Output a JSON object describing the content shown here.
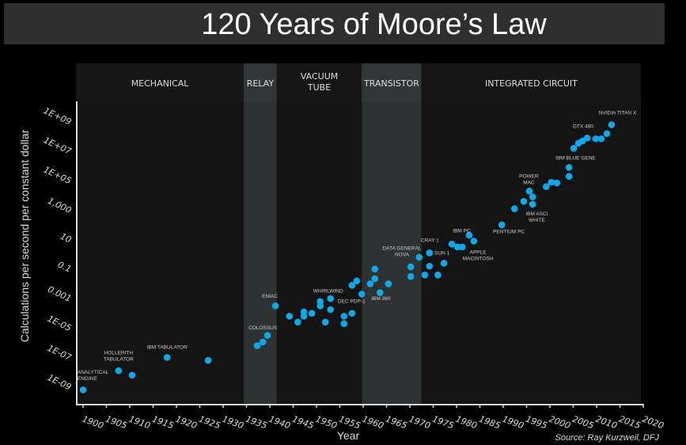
{
  "title": "120 Years of Moore’s Law",
  "chart_data": {
    "type": "scatter",
    "title": "120 Years of Moore’s Law",
    "xlabel": "Year",
    "ylabel": "Calculations per second per constant dollar",
    "yscale": "log10",
    "xlim": [
      1898.5,
      2020
    ],
    "ylim_log10": [
      -9.7,
      10.1
    ],
    "x_ticks": [
      1900,
      1905,
      1910,
      1915,
      1920,
      1925,
      1930,
      1935,
      1940,
      1945,
      1950,
      1955,
      1960,
      1965,
      1970,
      1975,
      1980,
      1985,
      1990,
      1995,
      2000,
      2005,
      2010,
      2015,
      2020
    ],
    "y_ticks": [
      {
        "log": 9,
        "label": "1E+09"
      },
      {
        "log": 7,
        "label": "1E+07"
      },
      {
        "log": 5,
        "label": "1E+05"
      },
      {
        "log": 3,
        "label": "1,000"
      },
      {
        "log": 1,
        "label": "10"
      },
      {
        "log": -1,
        "label": "0.1"
      },
      {
        "log": -3,
        "label": "0.001"
      },
      {
        "log": -5,
        "label": "1E-05"
      },
      {
        "log": -7,
        "label": "1E-07"
      },
      {
        "log": -9,
        "label": "1E-09"
      }
    ],
    "eras": [
      {
        "name": "MECHANICAL",
        "start": 1898.5,
        "end": 1934.4,
        "highlight": false
      },
      {
        "name": "RELAY",
        "start": 1934.4,
        "end": 1941.5,
        "highlight": true
      },
      {
        "name": "VACUUM TUBE",
        "start": 1941.5,
        "end": 1959.7,
        "highlight": false
      },
      {
        "name": "TRANSISTOR",
        "start": 1959.7,
        "end": 1972.5,
        "highlight": true
      },
      {
        "name": "INTEGRATED CIRCUIT",
        "start": 1972.5,
        "end": 2019.5,
        "highlight": false
      }
    ],
    "point_color": "#0fa8e8",
    "points_log10": [
      [
        1900,
        -9.3
      ],
      [
        1907.6,
        -8.0
      ],
      [
        1910.5,
        -8.3
      ],
      [
        1918,
        -7.1
      ],
      [
        1926.8,
        -7.3
      ],
      [
        1937.3,
        -6.3
      ],
      [
        1938.5,
        -6.05
      ],
      [
        1939.5,
        -5.6
      ],
      [
        1941.2,
        -3.6
      ],
      [
        1944.2,
        -4.3
      ],
      [
        1946,
        -4.7
      ],
      [
        1947.3,
        -4.0
      ],
      [
        1947.3,
        -4.3
      ],
      [
        1949,
        -4.1
      ],
      [
        1950.8,
        -3.3
      ],
      [
        1950.8,
        -3.6
      ],
      [
        1951.9,
        -4.7
      ],
      [
        1953,
        -3.1
      ],
      [
        1953,
        -3.85
      ],
      [
        1955.9,
        -4.3
      ],
      [
        1955.9,
        -4.8
      ],
      [
        1957.6,
        -4.1
      ],
      [
        1957.6,
        -2.2
      ],
      [
        1958.6,
        -1.9
      ],
      [
        1959.7,
        -2.8
      ],
      [
        1961.5,
        -2.1
      ],
      [
        1962.5,
        -1.1
      ],
      [
        1962.5,
        -1.75
      ],
      [
        1963.6,
        -2.7
      ],
      [
        1965.4,
        -2.1
      ],
      [
        1970.2,
        -0.95
      ],
      [
        1970.2,
        -1.6
      ],
      [
        1972,
        -0.3
      ],
      [
        1973.2,
        -1.5
      ],
      [
        1974.2,
        0.0
      ],
      [
        1974.2,
        -0.9
      ],
      [
        1976,
        -1.5
      ],
      [
        1977.3,
        -0.7
      ],
      [
        1979,
        0.6
      ],
      [
        1980.2,
        0.4
      ],
      [
        1981.2,
        0.4
      ],
      [
        1982.7,
        1.2
      ],
      [
        1983.7,
        0.8
      ],
      [
        1989.7,
        1.9
      ],
      [
        1992.4,
        3.0
      ],
      [
        1994.4,
        3.5
      ],
      [
        1995.6,
        4.2
      ],
      [
        1996.3,
        3.8
      ],
      [
        1996.3,
        3.3
      ],
      [
        1999.2,
        4.5
      ],
      [
        2000.3,
        4.8
      ],
      [
        2001.5,
        4.75
      ],
      [
        2004.1,
        5.2
      ],
      [
        2004.1,
        5.8
      ],
      [
        2005.1,
        7.1
      ],
      [
        2006.1,
        7.45
      ],
      [
        2007,
        7.6
      ],
      [
        2008,
        7.8
      ],
      [
        2009.8,
        7.75
      ],
      [
        2011,
        7.75
      ],
      [
        2012.2,
        8.1
      ],
      [
        2013.2,
        8.7
      ]
    ],
    "annotations": [
      {
        "lines": [
          "ANALYTICAL",
          "ENGINE"
        ],
        "x": 1898.8,
        "y": -8.2,
        "anchor": "start"
      },
      {
        "lines": [
          "HOLLERITH",
          "TABULATOR"
        ],
        "x": 1907.6,
        "y": -6.9,
        "anchor": "middle"
      },
      {
        "lines": [
          "IBM TABULATOR"
        ],
        "x": 1918,
        "y": -6.5,
        "anchor": "middle"
      },
      {
        "lines": [
          "COLOSSUS"
        ],
        "x": 1938.5,
        "y": -5.2,
        "anchor": "middle"
      },
      {
        "lines": [
          "ENIAC"
        ],
        "x": 1940,
        "y": -3.05,
        "anchor": "middle"
      },
      {
        "lines": [
          "WHIRLWIND"
        ],
        "x": 1952.5,
        "y": -2.7,
        "anchor": "middle"
      },
      {
        "lines": [
          "DEC PDP-1"
        ],
        "x": 1957.5,
        "y": -3.4,
        "anchor": "middle"
      },
      {
        "lines": [
          "IBM 360"
        ],
        "x": 1963.8,
        "y": -3.2,
        "anchor": "middle"
      },
      {
        "lines": [
          "DATA GENERAL",
          "NOVA"
        ],
        "x": 1968.3,
        "y": 0.2,
        "anchor": "middle"
      },
      {
        "lines": [
          "CRAY 1"
        ],
        "x": 1974.3,
        "y": 0.75,
        "anchor": "middle"
      },
      {
        "lines": [
          "SUN 1"
        ],
        "x": 1976.9,
        "y": -0.1,
        "anchor": "middle"
      },
      {
        "lines": [
          "IBM PC"
        ],
        "x": 1981.1,
        "y": 1.4,
        "anchor": "middle"
      },
      {
        "lines": [
          "APPLE",
          "MACINTOSH"
        ],
        "x": 1984.6,
        "y": -0.05,
        "anchor": "middle"
      },
      {
        "lines": [
          "PENTIUM PC"
        ],
        "x": 1991.2,
        "y": 1.35,
        "anchor": "middle"
      },
      {
        "lines": [
          "POWER",
          "MAC"
        ],
        "x": 1995.5,
        "y": 5.1,
        "anchor": "middle"
      },
      {
        "lines": [
          "IBM ASCI",
          "WHITE"
        ],
        "x": 1997.2,
        "y": 2.55,
        "anchor": "middle"
      },
      {
        "lines": [
          "IBM BLUE GENE"
        ],
        "x": 2005.5,
        "y": 6.35,
        "anchor": "middle"
      },
      {
        "lines": [
          "GTX 480"
        ],
        "x": 2007.1,
        "y": 8.5,
        "anchor": "middle"
      },
      {
        "lines": [
          "NVIDIA TITAN X"
        ],
        "x": 2014.5,
        "y": 9.4,
        "anchor": "middle"
      }
    ]
  },
  "source": "Source: Ray Kurzweil, DFJ"
}
